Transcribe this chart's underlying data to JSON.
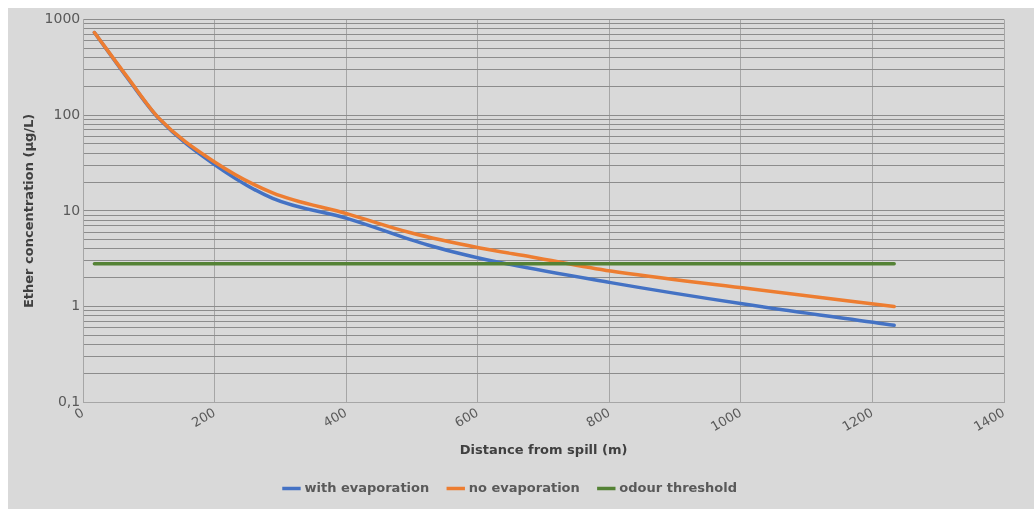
{
  "chart_data": {
    "type": "line",
    "xlabel": "Distance from spill (m)",
    "ylabel": "Ether concentration (µg/L)",
    "log": "y",
    "grid": true,
    "legend": "bottom",
    "marker": "none",
    "line_style": "solid",
    "xlim": [
      0,
      1400
    ],
    "xticks": [
      0,
      200,
      400,
      600,
      800,
      1000,
      1200,
      1400
    ],
    "ylim": [
      0.1,
      1000
    ],
    "yticks": [
      {
        "value": 0.1,
        "label": "0,1"
      },
      {
        "value": 0.2,
        "label": null
      },
      {
        "value": 0.3,
        "label": null
      },
      {
        "value": 0.4,
        "label": null
      },
      {
        "value": 0.5,
        "label": null
      },
      {
        "value": 0.6,
        "label": null
      },
      {
        "value": 0.7,
        "label": null
      },
      {
        "value": 0.8,
        "label": null
      },
      {
        "value": 0.9,
        "label": null
      },
      1,
      {
        "value": 2,
        "label": null
      },
      {
        "value": 3,
        "label": null
      },
      {
        "value": 4,
        "label": null
      },
      {
        "value": 5,
        "label": null
      },
      {
        "value": 6,
        "label": null
      },
      {
        "value": 7,
        "label": null
      },
      {
        "value": 8,
        "label": null
      },
      {
        "value": 9,
        "label": null
      },
      10,
      {
        "value": 20,
        "label": null
      },
      {
        "value": 30,
        "label": null
      },
      {
        "value": 40,
        "label": null
      },
      {
        "value": 50,
        "label": null
      },
      {
        "value": 60,
        "label": null
      },
      {
        "value": 70,
        "label": null
      },
      {
        "value": 80,
        "label": null
      },
      {
        "value": 90,
        "label": null
      },
      100,
      {
        "value": 200,
        "label": null
      },
      {
        "value": 300,
        "label": null
      },
      {
        "value": 400,
        "label": null
      },
      {
        "value": 500,
        "label": null
      },
      {
        "value": 600,
        "label": null
      },
      {
        "value": 700,
        "label": null
      },
      {
        "value": 800,
        "label": null
      },
      {
        "value": 900,
        "label": null
      },
      1000
    ],
    "series": [
      {
        "name": "with evaporation",
        "color": "#4472c4",
        "x": [
          17,
          68,
          115,
          198,
          288,
          402,
          524,
          603,
          802,
          1002,
          1233
        ],
        "values": [
          730,
          240,
          92,
          31,
          13.5,
          8.3,
          4.4,
          3.2,
          1.78,
          1.07,
          0.64
        ]
      },
      {
        "name": "no evaporation",
        "color": "#ed7d31",
        "x": [
          17,
          68,
          115,
          198,
          288,
          402,
          498,
          603,
          682,
          802,
          1002,
          1233
        ],
        "values": [
          730,
          245,
          93,
          33,
          15.4,
          9.3,
          5.9,
          4.1,
          3.3,
          2.35,
          1.57,
          1.0
        ]
      },
      {
        "name": "odour threshold",
        "color": "#548235",
        "x": [
          17,
          1233
        ],
        "values": [
          2.8,
          2.8
        ]
      }
    ]
  }
}
